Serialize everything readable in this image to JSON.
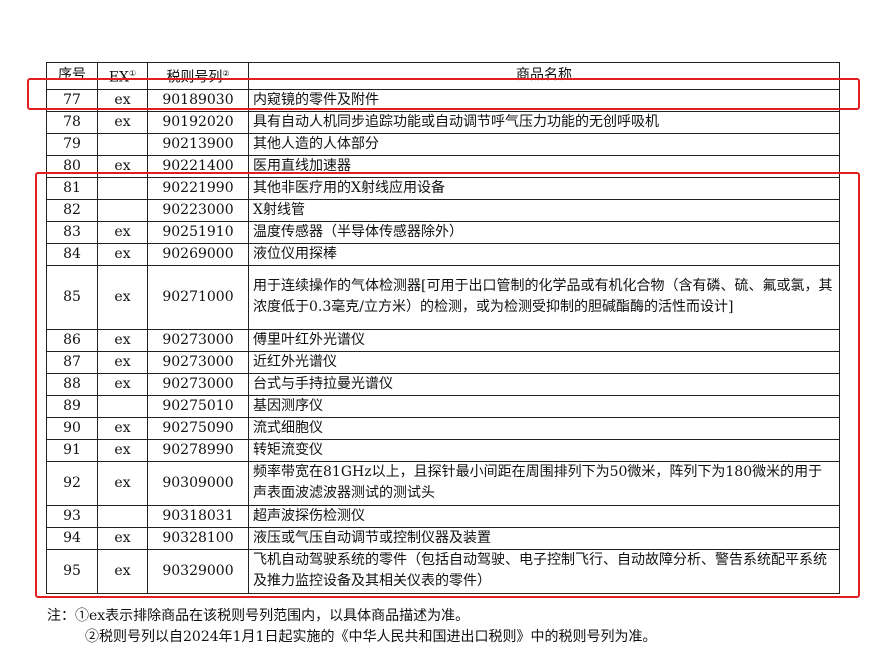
{
  "table": {
    "headers": {
      "seq": "序号",
      "ex": "EX",
      "ex_sup": "①",
      "code": "税则号列",
      "code_sup": "②",
      "name": "商品名称"
    },
    "rows": [
      {
        "seq": "77",
        "ex": "ex",
        "code": "90189030",
        "name": "内窥镜的零件及附件"
      },
      {
        "seq": "78",
        "ex": "ex",
        "code": "90192020",
        "name": "具有自动人机同步追踪功能或自动调节呼气压力功能的无创呼吸机"
      },
      {
        "seq": "79",
        "ex": "",
        "code": "90213900",
        "name": "其他人造的人体部分"
      },
      {
        "seq": "80",
        "ex": "ex",
        "code": "90221400",
        "name": "医用直线加速器"
      },
      {
        "seq": "81",
        "ex": "",
        "code": "90221990",
        "name": "其他非医疗用的X射线应用设备"
      },
      {
        "seq": "82",
        "ex": "",
        "code": "90223000",
        "name": "X射线管"
      },
      {
        "seq": "83",
        "ex": "ex",
        "code": "90251910",
        "name": "温度传感器（半导体传感器除外）"
      },
      {
        "seq": "84",
        "ex": "ex",
        "code": "90269000",
        "name": "液位仪用探棒"
      },
      {
        "seq": "85",
        "ex": "ex",
        "code": "90271000",
        "name": "用于连续操作的气体检测器[可用于出口管制的化学品或有机化合物（含有磷、硫、氟或氯，其浓度低于0.3毫克/立方米）的检测，或为检测受抑制的胆碱酯酶的活性而设计]"
      },
      {
        "seq": "86",
        "ex": "ex",
        "code": "90273000",
        "name": "傅里叶红外光谱仪"
      },
      {
        "seq": "87",
        "ex": "ex",
        "code": "90273000",
        "name": "近红外光谱仪"
      },
      {
        "seq": "88",
        "ex": "ex",
        "code": "90273000",
        "name": "台式与手持拉曼光谱仪"
      },
      {
        "seq": "89",
        "ex": "",
        "code": "90275010",
        "name": "基因测序仪"
      },
      {
        "seq": "90",
        "ex": "ex",
        "code": "90275090",
        "name": "流式细胞仪"
      },
      {
        "seq": "91",
        "ex": "ex",
        "code": "90278990",
        "name": "转矩流变仪"
      },
      {
        "seq": "92",
        "ex": "ex",
        "code": "90309000",
        "name": "频率带宽在81GHz以上，且探针最小间距在周围排列下为50微米，阵列下为180微米的用于声表面波滤波器测试的测试头"
      },
      {
        "seq": "93",
        "ex": "",
        "code": "90318031",
        "name": "超声波探伤检测仪"
      },
      {
        "seq": "94",
        "ex": "ex",
        "code": "90328100",
        "name": "液压或气压自动调节或控制仪器及装置"
      },
      {
        "seq": "95",
        "ex": "ex",
        "code": "90329000",
        "name": "飞机自动驾驶系统的零件（包括自动驾驶、电子控制飞行、自动故障分析、警告系统配平系统及推力监控设备及其相关仪表的零件）"
      }
    ]
  },
  "notes": {
    "line1": "注：①ex表示排除商品在该税则号列范围内，以具体商品描述为准。",
    "line2": "②税则号列以自2024年1月1日起实施的《中华人民共和国进出口税则》中的税则号列为准。"
  },
  "highlight_color": "#e02020"
}
